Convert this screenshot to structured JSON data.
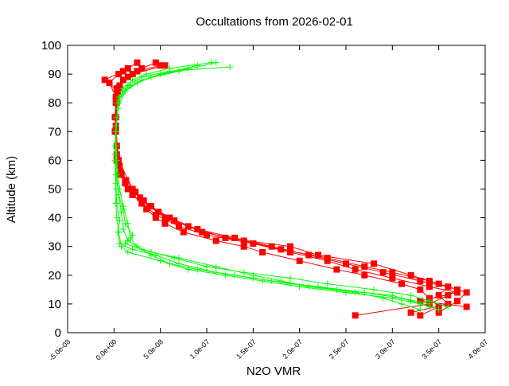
{
  "chart_data": {
    "type": "line",
    "title": "Occultations from 2026-02-01",
    "xlabel": "N2O VMR",
    "ylabel": "Altitude (km)",
    "xlim": [
      -5e-08,
      4e-07
    ],
    "ylim": [
      0,
      100
    ],
    "xticks": [
      "-5.0e-08",
      "0.0e+00",
      "5.0e-08",
      "1.0e-07",
      "1.5e-07",
      "2.0e-07",
      "2.5e-07",
      "3.0e-07",
      "3.5e-07",
      "4.0e-07"
    ],
    "xtick_values": [
      -5e-08,
      0,
      5e-08,
      1e-07,
      1.5e-07,
      2e-07,
      2.5e-07,
      3e-07,
      3.5e-07,
      4e-07
    ],
    "yticks": [
      "0",
      "10",
      "20",
      "30",
      "40",
      "50",
      "60",
      "70",
      "80",
      "90",
      "100"
    ],
    "ytick_values": [
      0,
      10,
      20,
      30,
      40,
      50,
      60,
      70,
      80,
      90,
      100
    ],
    "grid": false,
    "series": [
      {
        "color": "#ff0000",
        "marker": "square",
        "profiles": [
          {
            "alt": [
              6,
              9,
              12,
              15,
              17,
              20,
              22,
              25,
              28,
              30,
              32,
              35,
              38,
              40,
              43,
              45,
              48,
              50,
              55,
              60,
              70,
              80,
              85,
              88,
              90,
              92,
              94
            ],
            "vmr": [
              3.3e-07,
              3.5e-07,
              3.4e-07,
              3.3e-07,
              3.1e-07,
              2.7e-07,
              2.4e-07,
              2e-07,
              1.6e-07,
              1.4e-07,
              1.1e-07,
              7.5e-08,
              5.5e-08,
              4.5e-08,
              3.5e-08,
              3e-08,
              2e-08,
              1.5e-08,
              6e-09,
              3e-09,
              2e-09,
              3e-09,
              5e-09,
              1e-08,
              2e-08,
              3e-08,
              4.5e-08
            ]
          },
          {
            "alt": [
              7,
              10,
              13,
              16,
              18,
              21,
              24,
              27,
              30,
              33,
              36,
              40,
              44,
              47,
              50,
              55,
              60,
              70,
              80,
              86,
              89,
              91,
              93
            ],
            "vmr": [
              3.2e-07,
              3.6e-07,
              3.5e-07,
              3.6e-07,
              3.3e-07,
              2.9e-07,
              2.5e-07,
              2.1e-07,
              1.7e-07,
              1.3e-07,
              9e-08,
              6e-08,
              4e-08,
              2.8e-08,
              1.8e-08,
              8e-09,
              4e-09,
              1e-09,
              2e-09,
              6e-09,
              1.5e-08,
              2.5e-08,
              5e-08
            ]
          },
          {
            "alt": [
              9,
              11,
              14,
              16,
              19,
              22,
              25,
              28,
              31,
              34,
              37,
              41,
              45,
              48,
              52,
              56,
              62,
              72,
              82,
              87,
              90,
              92
            ],
            "vmr": [
              3.8e-07,
              3.3e-07,
              3.7e-07,
              3.4e-07,
              3e-07,
              2.6e-07,
              2.3e-07,
              1.9e-07,
              1.5e-07,
              1e-07,
              7e-08,
              4.5e-08,
              3e-08,
              2e-08,
              1.2e-08,
              7e-09,
              3e-09,
              2e-09,
              2e-09,
              -5e-09,
              5e-09,
              1.5e-08
            ]
          },
          {
            "alt": [
              6,
              10,
              13,
              15,
              18,
              21,
              23,
              26,
              29,
              32,
              35,
              39,
              42,
              46,
              49,
              53,
              58,
              65,
              75,
              84,
              88,
              91,
              94
            ],
            "vmr": [
              2.6e-07,
              3.4e-07,
              3.6e-07,
              3.7e-07,
              3.4e-07,
              3e-07,
              2.7e-07,
              2.3e-07,
              1.8e-07,
              1.4e-07,
              9.5e-08,
              6.5e-08,
              4.8e-08,
              3.2e-08,
              2.3e-08,
              1.3e-08,
              6e-09,
              3e-09,
              2e-09,
              4e-09,
              -1e-08,
              1e-08,
              2.5e-08
            ]
          },
          {
            "alt": [
              7,
              11,
              14,
              17,
              20,
              24,
              27,
              30,
              33,
              37,
              40,
              44,
              50,
              60,
              75,
              85,
              90,
              93
            ],
            "vmr": [
              3.5e-07,
              3.7e-07,
              3.8e-07,
              3.5e-07,
              3.2e-07,
              2.8e-07,
              2.2e-07,
              1.9e-07,
              1.2e-07,
              8e-08,
              5.5e-08,
              3.8e-08,
              2e-08,
              5e-09,
              1e-09,
              3e-09,
              2e-08,
              5.5e-08
            ]
          }
        ]
      },
      {
        "color": "#00ff00",
        "marker": "plus",
        "profiles": [
          {
            "alt": [
              8,
              10,
              12,
              14,
              16,
              18,
              20,
              22,
              25,
              28,
              30,
              35,
              40,
              45,
              50,
              60,
              70,
              80,
              85,
              88,
              90,
              92,
              94
            ],
            "vmr": [
              3.5e-07,
              3.3e-07,
              3e-07,
              2.5e-07,
              2e-07,
              1.6e-07,
              1.2e-07,
              8e-08,
              5e-08,
              1.5e-08,
              8e-09,
              5e-09,
              3e-09,
              2e-09,
              2e-09,
              1e-09,
              2e-09,
              5e-09,
              1e-08,
              2e-08,
              3.5e-08,
              6e-08,
              1.05e-07
            ]
          },
          {
            "alt": [
              9,
              11,
              13,
              15,
              17,
              19,
              21,
              23,
              26,
              29,
              32,
              36,
              42,
              48,
              55,
              65,
              75,
              82,
              86,
              89,
              91,
              92.5
            ],
            "vmr": [
              3.6e-07,
              3.4e-07,
              3.2e-07,
              2.8e-07,
              2.3e-07,
              1.9e-07,
              1.4e-07,
              1e-07,
              6.5e-08,
              3e-08,
              1.5e-08,
              1e-08,
              8e-09,
              5e-09,
              3e-09,
              2e-09,
              3e-09,
              6e-09,
              1.5e-08,
              3e-08,
              6e-08,
              1.25e-07
            ]
          },
          {
            "alt": [
              10,
              12,
              14,
              16,
              18,
              20,
              22,
              24,
              27,
              30,
              33,
              38,
              44,
              50,
              60,
              70,
              80,
              84,
              87,
              90,
              93
            ],
            "vmr": [
              3.4e-07,
              3.1e-07,
              2.7e-07,
              2.2e-07,
              1.7e-07,
              1.3e-07,
              9e-08,
              6e-08,
              4e-08,
              2.5e-08,
              1.8e-08,
              1.5e-08,
              1e-08,
              6e-09,
              3e-09,
              2e-09,
              4e-09,
              1e-08,
              2.5e-08,
              5e-08,
              9e-08
            ]
          },
          {
            "alt": [
              8,
              10,
              12,
              14,
              16,
              18,
              20,
              23,
              26,
              28,
              31,
              34,
              38,
              43,
              48,
              55,
              65,
              78,
              84,
              88,
              91,
              94
            ],
            "vmr": [
              3.3e-07,
              3.1e-07,
              2.9e-07,
              2.6e-07,
              2.1e-07,
              1.8e-07,
              1.5e-07,
              1.1e-07,
              7e-08,
              4e-08,
              1.2e-08,
              2e-08,
              1.2e-08,
              1e-08,
              5e-09,
              2e-09,
              1e-09,
              4e-09,
              1.2e-08,
              3e-08,
              7e-08,
              1.1e-07
            ]
          },
          {
            "alt": [
              9,
              11,
              13,
              15,
              17,
              19,
              21,
              24,
              27,
              29,
              31,
              35,
              39,
              45,
              52,
              62,
              72,
              81,
              86,
              89,
              92
            ],
            "vmr": [
              3.4e-07,
              3.2e-07,
              3e-07,
              2.4e-07,
              1.9e-07,
              1.5e-07,
              1.1e-07,
              7e-08,
              4.5e-08,
              2e-08,
              6e-09,
              4e-09,
              6e-09,
              3e-09,
              2e-09,
              1e-09,
              2e-09,
              5e-09,
              1.8e-08,
              4e-08,
              8e-08
            ]
          }
        ]
      }
    ]
  }
}
